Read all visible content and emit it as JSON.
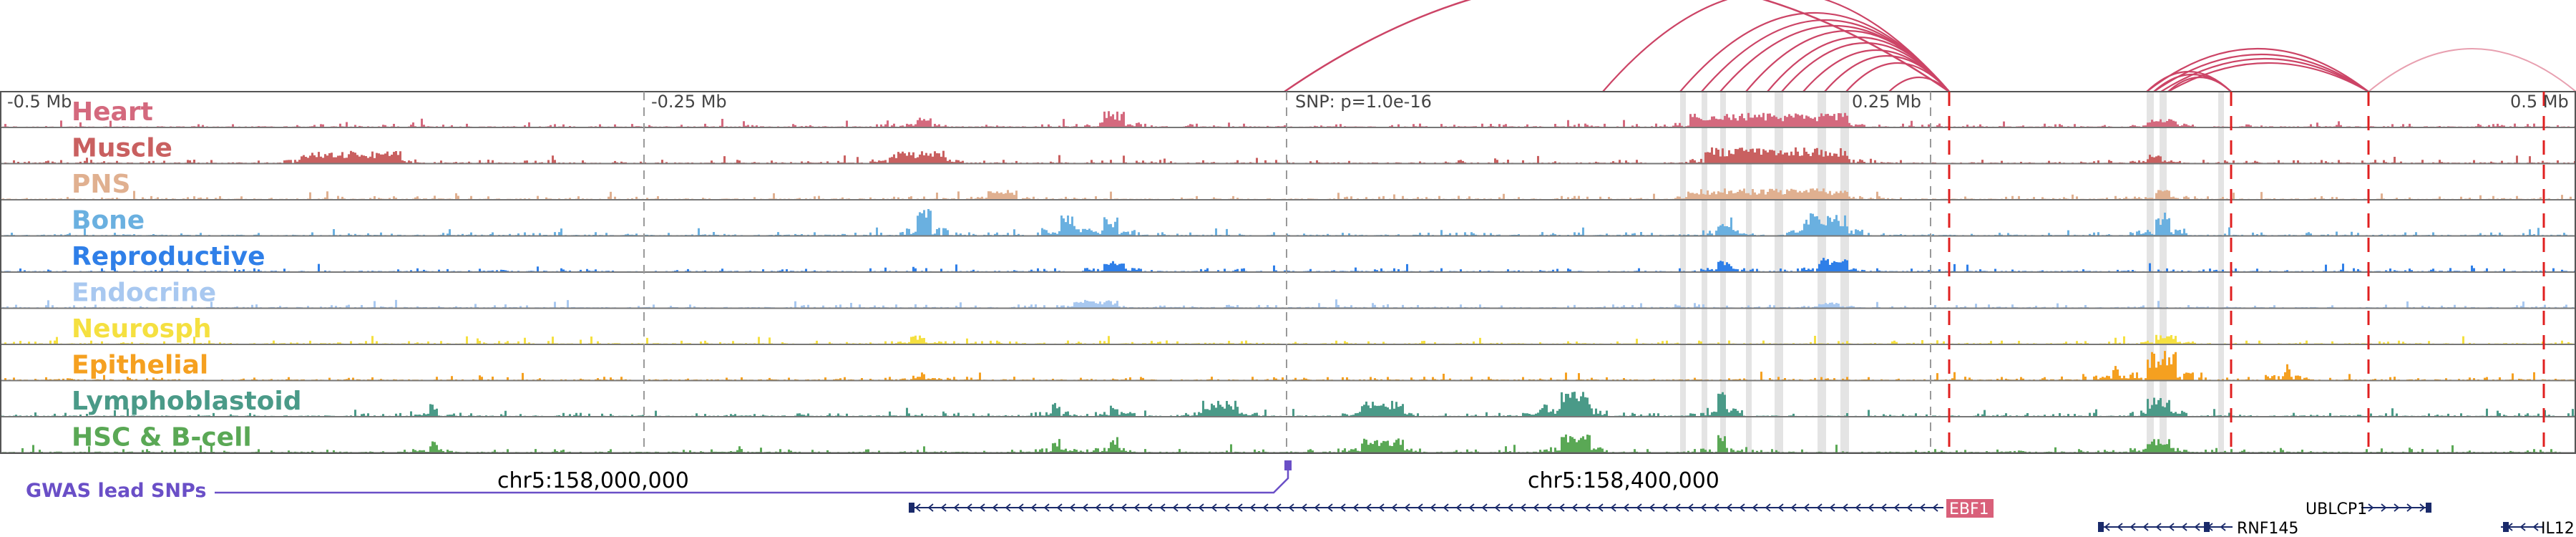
{
  "region": {
    "axis_labels": [
      "-0.5 Mb",
      "-0.25 Mb",
      "SNP: p=1.0e-16",
      "0.25 Mb",
      "0.5 Mb"
    ],
    "coordinates": [
      "chr5:158,000,000",
      "chr5:158,400,000"
    ]
  },
  "colors": {
    "heart": "#d4697e",
    "muscle": "#c96060",
    "pns": "#e0b090",
    "bone": "#6ab0e0",
    "reproductive": "#2f7fe8",
    "endocrine": "#a8c8f0",
    "neurosph": "#f5e040",
    "epithelial": "#f5a020",
    "lymphoblastoid": "#4a9a88",
    "hsc": "#5aa855",
    "loop": "#cc4466",
    "faint_loop": "#e8a0b0",
    "gwas": "#6a4fc7",
    "gene": "#1a2a6a",
    "ebf1_box": "#d9607a",
    "highlight_line": "#e02020"
  },
  "tracks": [
    {
      "label": "Heart",
      "color_key": "heart"
    },
    {
      "label": "Muscle",
      "color_key": "muscle"
    },
    {
      "label": "PNS",
      "color_key": "pns"
    },
    {
      "label": "Bone",
      "color_key": "bone"
    },
    {
      "label": "Reproductive",
      "color_key": "reproductive"
    },
    {
      "label": "Endocrine",
      "color_key": "endocrine"
    },
    {
      "label": "Neurosph",
      "color_key": "neurosph"
    },
    {
      "label": "Epithelial",
      "color_key": "epithelial"
    },
    {
      "label": "Lymphoblastoid",
      "color_key": "lymphoblastoid"
    },
    {
      "label": "HSC & B-cell",
      "color_key": "hsc"
    }
  ],
  "gwas_label": "GWAS lead SNPs",
  "genes": [
    {
      "name": "EBF1",
      "boxed": true
    },
    {
      "name": "RNF145",
      "boxed": false
    },
    {
      "name": "UBLCP1",
      "boxed": false
    },
    {
      "name": "IL12",
      "boxed": false
    }
  ]
}
